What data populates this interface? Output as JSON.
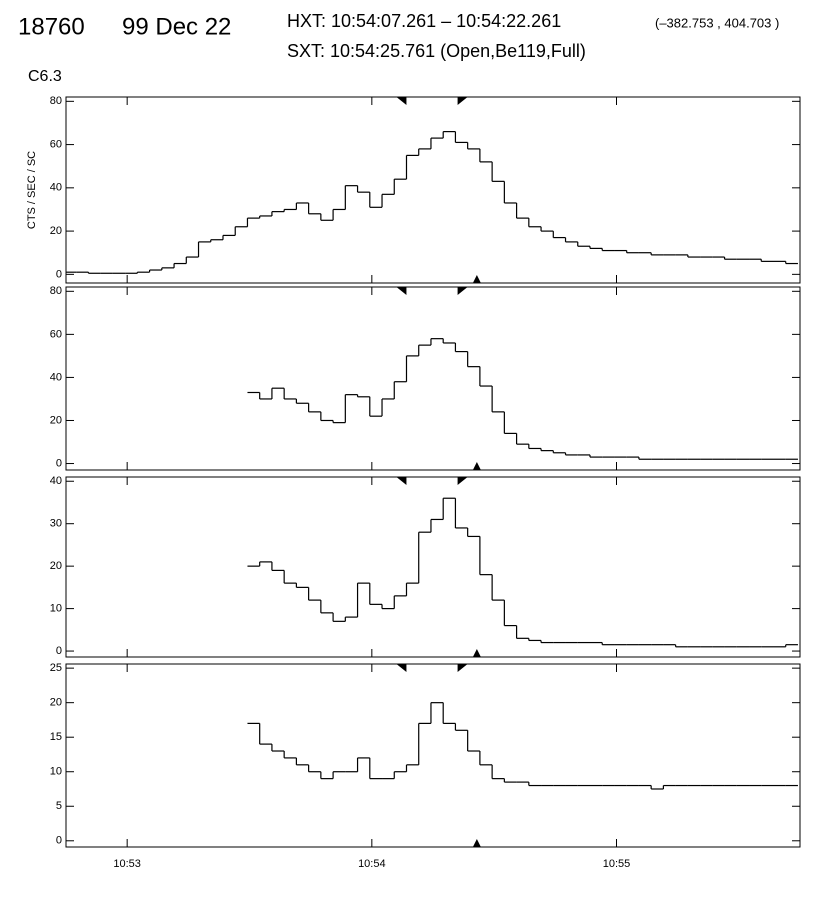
{
  "header": {
    "id": "18760",
    "date": "99 Dec 22",
    "hxt": "HXT: 10:54:07.261 – 10:54:22.261",
    "coords": "(–382.753 , 404.703 )",
    "sxt": "SXT: 10:54:25.761 (Open,Be119,Full)",
    "class": "C6.3"
  },
  "markers": {
    "hxt": [
      39247.261,
      39262.261
    ],
    "sxt": 39265.761
  },
  "chart_data": [
    {
      "type": "line",
      "ylabel": "CTS / SEC / SC",
      "color": "#000000",
      "x": [
        39166,
        39169,
        39172,
        39175,
        39178,
        39181,
        39184,
        39187,
        39190,
        39193,
        39196,
        39199,
        39202,
        39205,
        39208,
        39211,
        39214,
        39217,
        39220,
        39223,
        39226,
        39229,
        39232,
        39235,
        39238,
        39241,
        39244,
        39247,
        39250,
        39253,
        39256,
        39259,
        39262,
        39265,
        39268,
        39271,
        39274,
        39277,
        39280,
        39283,
        39286,
        39289,
        39292,
        39295,
        39298,
        39301,
        39304,
        39307,
        39310,
        39313,
        39316,
        39319,
        39322,
        39325,
        39328,
        39331,
        39334,
        39337,
        39340,
        39343
      ],
      "values": [
        1,
        1,
        0.5,
        0.5,
        0.5,
        0.5,
        1,
        2,
        3,
        5,
        8,
        15,
        16,
        18,
        22,
        26,
        27,
        29,
        30,
        33,
        28,
        25,
        30,
        41,
        38,
        31,
        37,
        44,
        55,
        58,
        63,
        66,
        61,
        58,
        52,
        43,
        33,
        26,
        22,
        20,
        17,
        15,
        13,
        12,
        11,
        11,
        10,
        10,
        9,
        9,
        9,
        8,
        8,
        8,
        7,
        7,
        7,
        6,
        6,
        5
      ],
      "xlim": [
        39165,
        39345
      ],
      "ylim": [
        -4,
        82
      ],
      "yticks": [
        0,
        20,
        40,
        60,
        80
      ]
    },
    {
      "type": "line",
      "color": "#000000",
      "x": [
        39211,
        39214,
        39217,
        39220,
        39223,
        39226,
        39229,
        39232,
        39235,
        39238,
        39241,
        39244,
        39247,
        39250,
        39253,
        39256,
        39259,
        39262,
        39265,
        39268,
        39271,
        39274,
        39277,
        39280,
        39283,
        39286,
        39289,
        39292,
        39295,
        39298,
        39301,
        39304,
        39307,
        39310,
        39313,
        39316,
        39319,
        39322,
        39325,
        39328,
        39331,
        39334,
        39337,
        39340,
        39343
      ],
      "values": [
        33,
        30,
        35,
        30,
        28,
        24,
        20,
        19,
        32,
        31,
        22,
        30,
        38,
        50,
        55,
        58,
        56,
        52,
        45,
        36,
        24,
        14,
        9,
        7,
        6,
        5,
        4,
        4,
        3,
        3,
        3,
        3,
        2,
        2,
        2,
        2,
        2,
        2,
        2,
        2,
        2,
        2,
        2,
        2,
        2
      ],
      "xlim": [
        39165,
        39345
      ],
      "ylim": [
        -3,
        82
      ],
      "yticks": [
        0,
        20,
        40,
        60,
        80
      ]
    },
    {
      "type": "line",
      "color": "#000000",
      "x": [
        39211,
        39214,
        39217,
        39220,
        39223,
        39226,
        39229,
        39232,
        39235,
        39238,
        39241,
        39244,
        39247,
        39250,
        39253,
        39256,
        39259,
        39262,
        39265,
        39268,
        39271,
        39274,
        39277,
        39280,
        39283,
        39286,
        39289,
        39292,
        39295,
        39298,
        39301,
        39304,
        39307,
        39310,
        39313,
        39316,
        39319,
        39322,
        39325,
        39328,
        39331,
        39334,
        39337,
        39340,
        39343
      ],
      "values": [
        20,
        21,
        19,
        16,
        15,
        12,
        9,
        7,
        8,
        16,
        11,
        10,
        13,
        16,
        28,
        31,
        36,
        29,
        27,
        18,
        12,
        6,
        3,
        2.5,
        2,
        2,
        2,
        2,
        2,
        1.5,
        1.5,
        1.5,
        1.5,
        1.5,
        1.5,
        1,
        1,
        1,
        1,
        1,
        1,
        1,
        1,
        1,
        1.5
      ],
      "xlim": [
        39165,
        39345
      ],
      "ylim": [
        -1.4,
        41
      ],
      "yticks": [
        0,
        10,
        20,
        30,
        40
      ]
    },
    {
      "type": "line",
      "color": "#000000",
      "x": [
        39211,
        39214,
        39217,
        39220,
        39223,
        39226,
        39229,
        39232,
        39235,
        39238,
        39241,
        39244,
        39247,
        39250,
        39253,
        39256,
        39259,
        39262,
        39265,
        39268,
        39271,
        39274,
        39277,
        39280,
        39283,
        39286,
        39289,
        39292,
        39295,
        39298,
        39301,
        39304,
        39307,
        39310,
        39313,
        39316,
        39319,
        39322,
        39325,
        39328,
        39331,
        39334,
        39337,
        39340,
        39343
      ],
      "values": [
        17,
        14,
        13,
        12,
        11,
        10,
        9,
        10,
        10,
        12,
        9,
        9,
        10,
        11,
        17,
        20,
        17,
        16,
        13,
        11,
        9,
        8.5,
        8.5,
        8,
        8,
        8,
        8,
        8,
        8,
        8,
        8,
        8,
        8,
        7.5,
        8,
        8,
        8,
        8,
        8,
        8,
        8,
        8,
        8,
        8,
        8
      ],
      "xlim": [
        39165,
        39345
      ],
      "ylim": [
        -0.9,
        25.6
      ],
      "yticks": [
        0,
        5,
        10,
        15,
        20,
        25
      ],
      "xticks": [
        {
          "value": 39180,
          "label": "10:53"
        },
        {
          "value": 39240,
          "label": "10:54"
        },
        {
          "value": 39300,
          "label": "10:55"
        }
      ]
    }
  ]
}
